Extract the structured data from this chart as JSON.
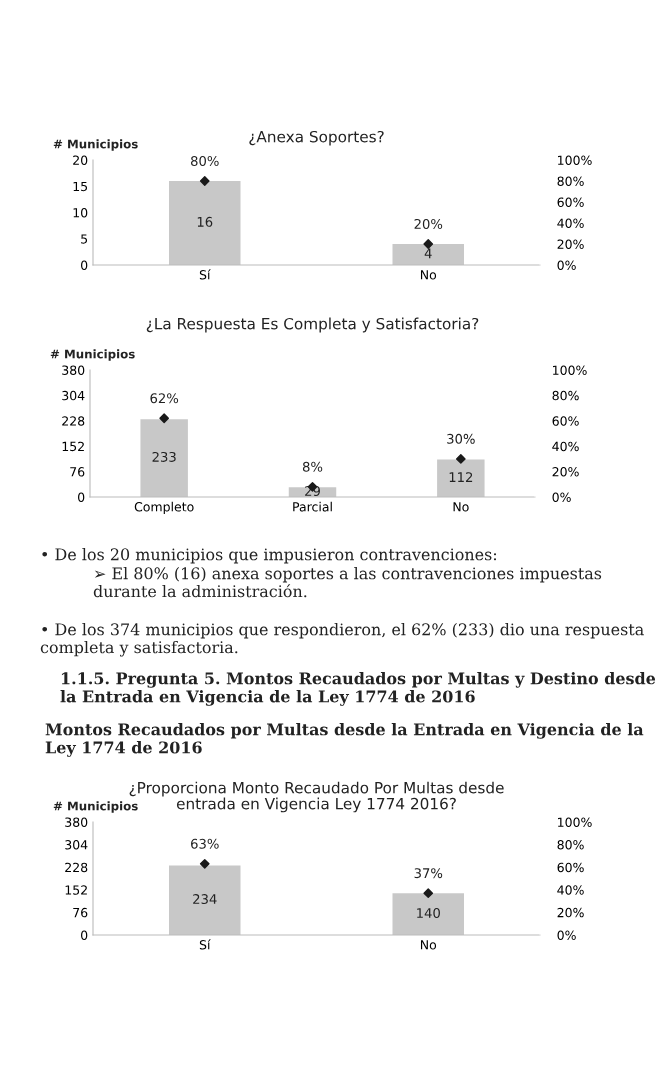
{
  "chart_data": [
    {
      "type": "bar",
      "title": "¿Anexa Soportes?",
      "ylabel": "# Municipios",
      "categories": [
        "Sí",
        "No"
      ],
      "series": [
        {
          "color": "#c8c8c8",
          "values": [
            16,
            4
          ],
          "value_labels": [
            "16",
            "4"
          ]
        },
        {
          "type": "scatter",
          "axis": "y2",
          "color": "#1a1a1a",
          "values": [
            80,
            20
          ],
          "value_labels": [
            "80%",
            "20%"
          ]
        }
      ],
      "ylim": [
        0,
        20
      ],
      "yticks": [
        0,
        5,
        10,
        15,
        20
      ],
      "y2lim": [
        0,
        100
      ],
      "y2ticks": [
        {
          "value": 0,
          "label": "0%"
        },
        {
          "value": 20,
          "label": "20%"
        },
        {
          "value": 40,
          "label": "40%"
        },
        {
          "value": 60,
          "label": "60%"
        },
        {
          "value": 80,
          "label": "80%"
        },
        {
          "value": 100,
          "label": "100%"
        }
      ],
      "marker": "diamond",
      "grid": false
    },
    {
      "type": "bar",
      "title": "¿La Respuesta Es Completa y Satisfactoria?",
      "ylabel": "# Municipios",
      "categories": [
        "Completo",
        "Parcial",
        "No"
      ],
      "series": [
        {
          "color": "#c8c8c8",
          "values": [
            233,
            29,
            112
          ],
          "value_labels": [
            "233",
            "29",
            "112"
          ]
        },
        {
          "type": "scatter",
          "axis": "y2",
          "color": "#1a1a1a",
          "values": [
            62,
            8,
            30
          ],
          "value_labels": [
            "62%",
            "8%",
            "30%"
          ]
        }
      ],
      "ylim": [
        0,
        380
      ],
      "yticks": [
        0,
        76,
        152,
        228,
        304,
        380
      ],
      "y2lim": [
        0,
        100
      ],
      "y2ticks": [
        {
          "value": 0,
          "label": "0%"
        },
        {
          "value": 20,
          "label": "20%"
        },
        {
          "value": 40,
          "label": "40%"
        },
        {
          "value": 60,
          "label": "60%"
        },
        {
          "value": 80,
          "label": "80%"
        },
        {
          "value": 100,
          "label": "100%"
        }
      ],
      "marker": "diamond",
      "grid": false,
      "annotations": [
        "• De los 20 municipios que impusieron contravenciones:",
        "➢ El 80% (16) anexa soportes a las contravenciones impuestas durante la administración.",
        "• De los 374 municipios que respondieron, el 62% (233) dio una respuesta completa y satisfactoria."
      ]
    },
    {
      "type": "bar",
      "title": "¿Proporciona Monto Recaudado Por Multas desde\nentrada en Vigencia Ley 1774 2016?",
      "ylabel": "# Municipios",
      "categories": [
        "Sí",
        "No"
      ],
      "series": [
        {
          "color": "#c8c8c8",
          "values": [
            234,
            140
          ],
          "value_labels": [
            "234",
            "140"
          ]
        },
        {
          "type": "scatter",
          "axis": "y2",
          "color": "#1a1a1a",
          "values": [
            63,
            37
          ],
          "value_labels": [
            "63%",
            "37%"
          ]
        }
      ],
      "ylim": [
        0,
        380
      ],
      "yticks": [
        0,
        76,
        152,
        228,
        304,
        380
      ],
      "y2lim": [
        0,
        100
      ],
      "y2ticks": [
        {
          "value": 0,
          "label": "0%"
        },
        {
          "value": 20,
          "label": "20%"
        },
        {
          "value": 40,
          "label": "40%"
        },
        {
          "value": 60,
          "label": "60%"
        },
        {
          "value": 80,
          "label": "80%"
        },
        {
          "value": 100,
          "label": "100%"
        }
      ],
      "marker": "diamond",
      "grid": false,
      "annotations": [
        "1.1.5. Pregunta 5. Montos Recaudados por Multas y Destino desde la Entrada en Vigencia de la Ley 1774 de 2016",
        "Montos Recaudados por Multas desde la Entrada en Vigencia de la Ley 1774 de 2016"
      ]
    }
  ]
}
